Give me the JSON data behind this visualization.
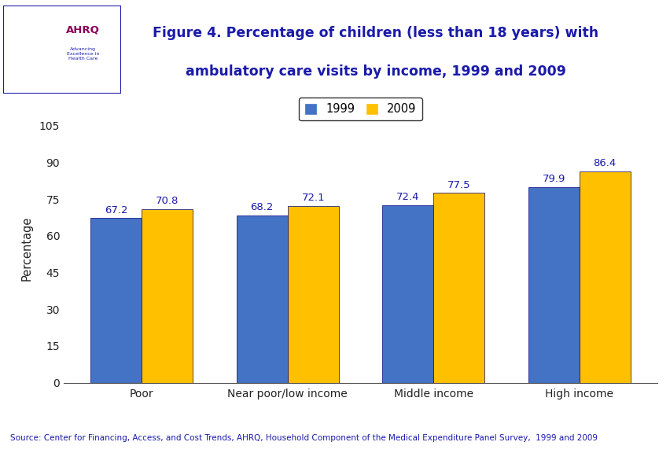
{
  "title_line1": "Figure 4. Percentage of children (less than 18 years) with",
  "title_line2": "ambulatory care visits by income, 1999 and 2009",
  "title_color": "#1a1aaa",
  "title_fontsize": 12.5,
  "categories": [
    "Poor",
    "Near poor/low income",
    "Middle income",
    "High income"
  ],
  "values_1999": [
    67.2,
    68.2,
    72.4,
    79.9
  ],
  "values_2009": [
    70.8,
    72.1,
    77.5,
    86.4
  ],
  "color_1999": "#4472C4",
  "color_2009": "#FFC000",
  "ylabel": "Percentage",
  "ylim": [
    0,
    110
  ],
  "yticks": [
    0,
    15,
    30,
    45,
    60,
    75,
    90,
    105
  ],
  "legend_labels": [
    "1999",
    "2009"
  ],
  "bar_width": 0.35,
  "source_text": "Source: Center for Financing, Access, and Cost Trends, AHRQ, Household Component of the Medical Expenditure Panel Survey,  1999 and 2009",
  "background_color": "#ffffff",
  "header_border_color": "#1a1aaa",
  "bar_edge_color": "#000080",
  "label_fontsize": 9.5,
  "value_label_color": "#1a1aaa",
  "outer_border_color": "#1a1aaa",
  "logo_bg_color": "#2288aa",
  "separator_line_color": "#1a1aaa",
  "axis_tick_fontsize": 10,
  "ylabel_fontsize": 10.5
}
